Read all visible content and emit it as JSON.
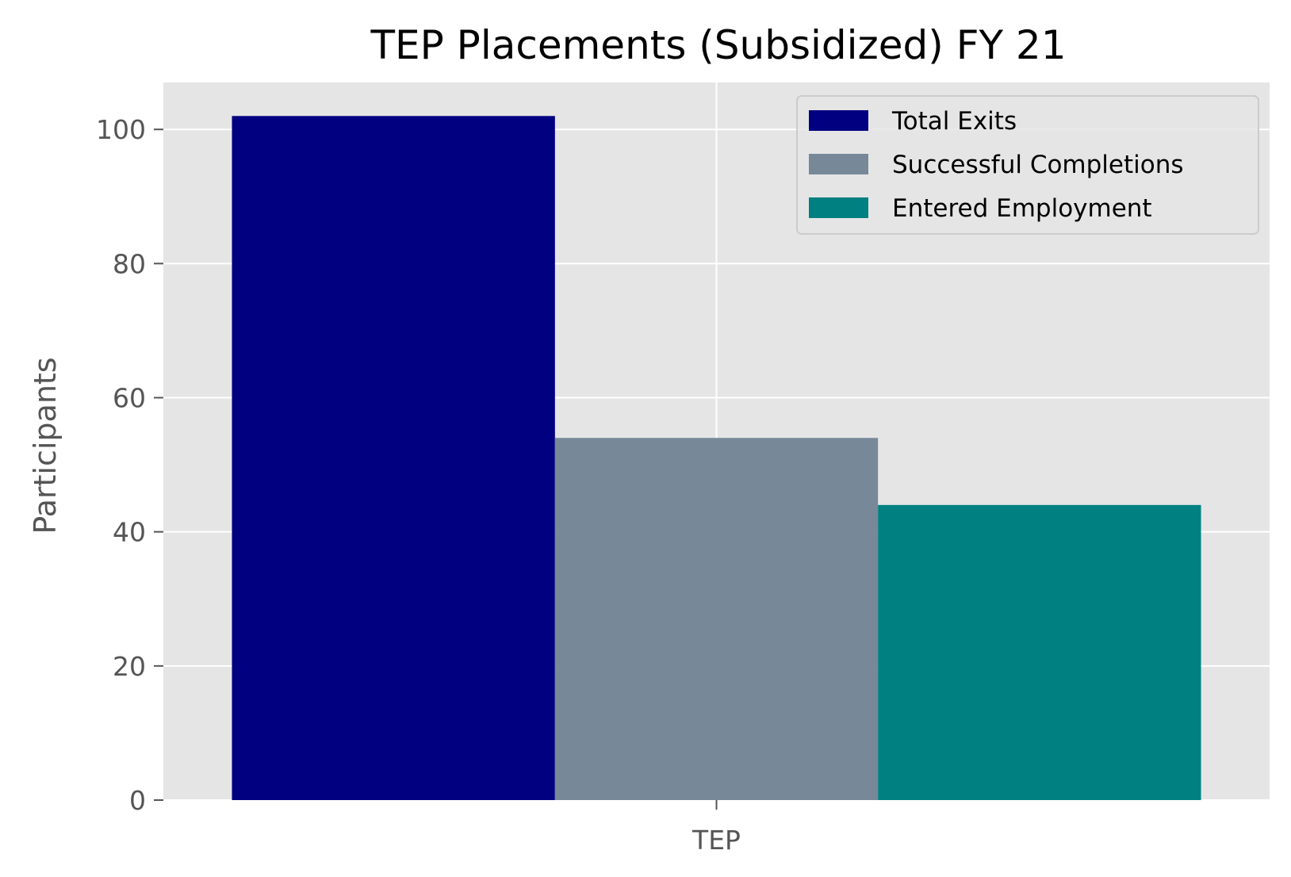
{
  "chart_data": {
    "type": "bar",
    "title": "TEP Placements (Subsidized) FY 21",
    "xlabel": "",
    "ylabel": "Participants",
    "categories": [
      "TEP"
    ],
    "series": [
      {
        "name": "Total Exits",
        "values": [
          102
        ],
        "color": "#000080"
      },
      {
        "name": "Successful Completions",
        "values": [
          54
        ],
        "color": "#778899"
      },
      {
        "name": "Entered Employment",
        "values": [
          44
        ],
        "color": "#008080"
      }
    ],
    "ylim": [
      0,
      107
    ],
    "yticks": [
      0,
      20,
      40,
      60,
      80,
      100
    ],
    "grid": true,
    "legend_position": "top-right",
    "plot_background": "#e5e5e5",
    "grid_color": "#ffffff"
  }
}
